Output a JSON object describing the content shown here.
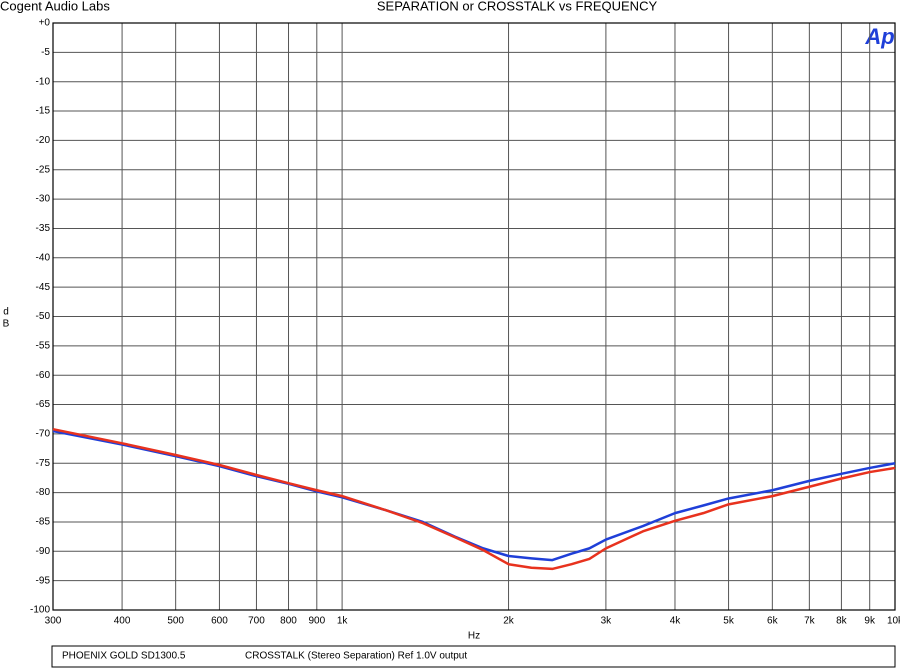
{
  "chart_data": {
    "type": "line",
    "header": "Cogent Audio Labs",
    "title": "SEPARATION or CROSSTALK vs FREQUENCY",
    "logo": "Ap",
    "ylabel": [
      "d",
      "B"
    ],
    "xlabel": "Hz",
    "footer": [
      "PHOENIX GOLD  SD1300.5",
      "CROSSTALK  (Stereo Separation)  Ref 1.0V output"
    ],
    "xscale": "log",
    "grid": true,
    "xlim": [
      300,
      10000
    ],
    "ylim": [
      -100,
      0
    ],
    "xticks": [
      300,
      400,
      500,
      600,
      700,
      800,
      900,
      {
        "value": 1000,
        "label": "1k"
      },
      {
        "value": 2000,
        "label": "2k"
      },
      {
        "value": 3000,
        "label": "3k"
      },
      {
        "value": 4000,
        "label": "4k"
      },
      {
        "value": 5000,
        "label": "5k"
      },
      {
        "value": 6000,
        "label": "6k"
      },
      {
        "value": 7000,
        "label": "7k"
      },
      {
        "value": 8000,
        "label": "8k"
      },
      {
        "value": 9000,
        "label": "9k"
      },
      {
        "value": 10000,
        "label": "10k"
      }
    ],
    "yticks": [
      {
        "value": 0,
        "label": "+0"
      },
      -5,
      -10,
      -15,
      -20,
      -25,
      -30,
      -35,
      -40,
      -45,
      -50,
      -55,
      -60,
      -65,
      -70,
      -75,
      -80,
      -85,
      -90,
      -95,
      -100
    ],
    "x": [
      300,
      400,
      500,
      600,
      700,
      800,
      900,
      1000,
      1200,
      1400,
      1600,
      1800,
      2000,
      2200,
      2400,
      2600,
      2800,
      3000,
      3500,
      4000,
      4500,
      5000,
      6000,
      7000,
      8000,
      9000,
      10000
    ],
    "series": [
      {
        "color": "#1f3fd8",
        "values": [
          -69.5,
          -71.8,
          -73.8,
          -75.5,
          -77.2,
          -78.5,
          -79.8,
          -80.8,
          -83,
          -85,
          -87.5,
          -89.5,
          -90.8,
          -91.2,
          -91.5,
          -90.4,
          -89.5,
          -88,
          -85.7,
          -83.5,
          -82.2,
          -81,
          -79.6,
          -78,
          -76.8,
          -75.8,
          -75
        ]
      },
      {
        "color": "#e8321e",
        "values": [
          -69.2,
          -71.6,
          -73.6,
          -75.3,
          -77,
          -78.4,
          -79.6,
          -80.6,
          -83,
          -85.2,
          -87.6,
          -89.8,
          -92.2,
          -92.8,
          -93,
          -92.2,
          -91.3,
          -89.5,
          -86.6,
          -84.8,
          -83.5,
          -82,
          -80.6,
          -79,
          -77.6,
          -76.5,
          -75.8
        ]
      }
    ]
  }
}
